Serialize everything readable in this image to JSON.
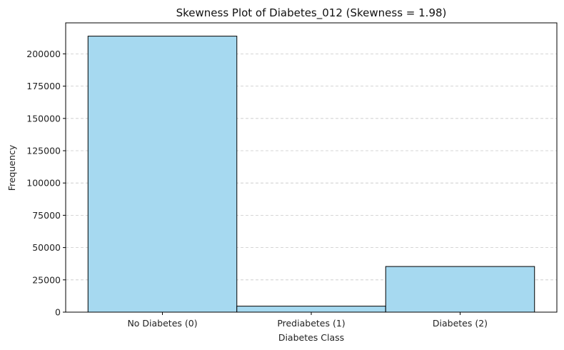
{
  "chart_data": {
    "type": "bar",
    "title": "Skewness Plot of Diabetes_012 (Skewness = 1.98)",
    "xlabel": "Diabetes Class",
    "ylabel": "Frequency",
    "categories": [
      "No Diabetes (0)",
      "Prediabetes (1)",
      "Diabetes (2)"
    ],
    "values": [
      213703,
      4631,
      35346
    ],
    "ylim": [
      0,
      224000
    ],
    "yticks": [
      0,
      25000,
      50000,
      75000,
      100000,
      125000,
      150000,
      175000,
      200000
    ],
    "grid": "y-dashed",
    "colors": {
      "bar_fill": "#a6d9f0",
      "bar_edge": "#000000",
      "grid": "#c8c8c8"
    }
  }
}
